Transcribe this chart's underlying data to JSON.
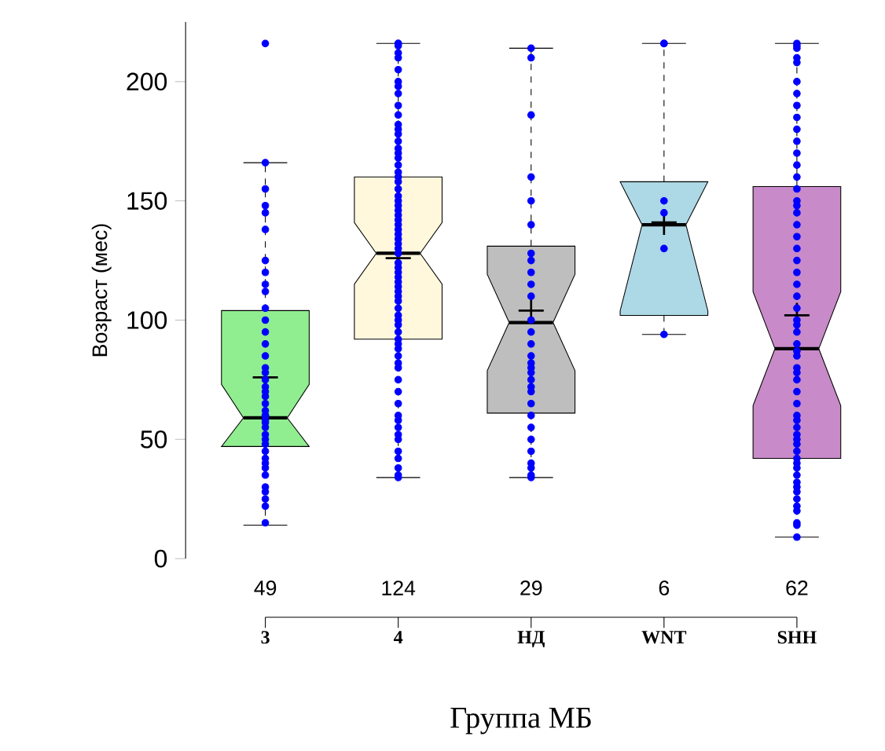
{
  "chart_data": {
    "type": "box",
    "xlabel": "Группа МБ",
    "ylabel": "Возраст (мес)",
    "categories": [
      "3",
      "4",
      "НД",
      "WNT",
      "SHH"
    ],
    "colors": [
      "#90ee90",
      "#fff8dc",
      "#bebebe",
      "#add8e6",
      "#c88ac8"
    ],
    "boxes": [
      {
        "low": 14,
        "q1": 47,
        "median": 59,
        "q3": 104,
        "high": 166,
        "mean": 76
      },
      {
        "low": 34,
        "q1": 92,
        "median": 128,
        "q3": 160,
        "high": 216,
        "mean": 126
      },
      {
        "low": 34,
        "q1": 61,
        "median": 99,
        "q3": 131,
        "high": 214,
        "mean": 104
      },
      {
        "low": 94,
        "q1": 102,
        "median": 140,
        "q3": 158,
        "high": 216,
        "mean": 141
      },
      {
        "low": 9,
        "q1": 42,
        "median": 88,
        "q3": 156,
        "high": 216,
        "mean": 102
      }
    ],
    "series": [
      {
        "type": "scatter",
        "color": "#0000ff",
        "marker": "circle",
        "x": [
          "3",
          "3",
          "3",
          "3",
          "3",
          "3",
          "3",
          "3",
          "3",
          "3",
          "3",
          "3",
          "3",
          "3",
          "3",
          "3",
          "3",
          "3",
          "3",
          "3",
          "3",
          "3",
          "3",
          "3",
          "3",
          "3",
          "3",
          "3",
          "3",
          "3",
          "3",
          "3",
          "3",
          "3",
          "3",
          "3",
          "3",
          "3",
          "3",
          "3",
          "3",
          "4",
          "4",
          "4",
          "4",
          "4",
          "4",
          "4",
          "4",
          "4",
          "4",
          "4",
          "4",
          "4",
          "4",
          "4",
          "4",
          "4",
          "4",
          "4",
          "4",
          "4",
          "4",
          "4",
          "4",
          "4",
          "4",
          "4",
          "4",
          "4",
          "4",
          "4",
          "4",
          "4",
          "4",
          "4",
          "4",
          "4",
          "4",
          "4",
          "4",
          "4",
          "4",
          "4",
          "4",
          "4",
          "4",
          "4",
          "4",
          "4",
          "4",
          "4",
          "4",
          "4",
          "4",
          "4",
          "4",
          "4",
          "4",
          "4",
          "4",
          "4",
          "4",
          "4",
          "4",
          "4",
          "4",
          "4",
          "4",
          "4",
          "НД",
          "НД",
          "НД",
          "НД",
          "НД",
          "НД",
          "НД",
          "НД",
          "НД",
          "НД",
          "НД",
          "НД",
          "НД",
          "НД",
          "НД",
          "НД",
          "НД",
          "НД",
          "НД",
          "НД",
          "НД",
          "НД",
          "НД",
          "НД",
          "НД",
          "НД",
          "НД",
          "НД",
          "НД",
          "НД",
          "WNT",
          "WNT",
          "WNT",
          "WNT",
          "WNT",
          "WNT",
          "SHH",
          "SHH",
          "SHH",
          "SHH",
          "SHH",
          "SHH",
          "SHH",
          "SHH",
          "SHH",
          "SHH",
          "SHH",
          "SHH",
          "SHH",
          "SHH",
          "SHH",
          "SHH",
          "SHH",
          "SHH",
          "SHH",
          "SHH",
          "SHH",
          "SHH",
          "SHH",
          "SHH",
          "SHH",
          "SHH",
          "SHH",
          "SHH",
          "SHH",
          "SHH",
          "SHH",
          "SHH",
          "SHH",
          "SHH",
          "SHH",
          "SHH",
          "SHH",
          "SHH",
          "SHH",
          "SHH",
          "SHH",
          "SHH",
          "SHH",
          "SHH",
          "SHH",
          "SHH",
          "SHH",
          "SHH",
          "SHH",
          "SHH",
          "SHH",
          "SHH",
          "SHH",
          "SHH",
          "SHH",
          "SHH",
          "SHH"
        ],
        "values": [
          216,
          166,
          155,
          148,
          145,
          138,
          125,
          120,
          115,
          112,
          105,
          100,
          95,
          90,
          85,
          80,
          78,
          75,
          72,
          70,
          68,
          65,
          62,
          60,
          60,
          58,
          57,
          55,
          52,
          50,
          48,
          45,
          42,
          40,
          38,
          35,
          30,
          28,
          25,
          22,
          15,
          216,
          216,
          215,
          212,
          210,
          205,
          200,
          198,
          195,
          190,
          186,
          182,
          180,
          178,
          175,
          172,
          170,
          168,
          165,
          162,
          160,
          158,
          155,
          152,
          150,
          148,
          146,
          144,
          142,
          140,
          138,
          136,
          134,
          132,
          130,
          128,
          124,
          122,
          120,
          118,
          116,
          114,
          112,
          110,
          108,
          105,
          102,
          100,
          98,
          95,
          92,
          90,
          88,
          85,
          82,
          80,
          75,
          70,
          65,
          60,
          55,
          50,
          42,
          38,
          35,
          34,
          45,
          52,
          58,
          214,
          210,
          186,
          160,
          150,
          140,
          128,
          125,
          120,
          115,
          110,
          100,
          95,
          90,
          85,
          82,
          80,
          78,
          75,
          72,
          70,
          65,
          60,
          55,
          50,
          45,
          40,
          35,
          34,
          38,
          216,
          216,
          150,
          145,
          130,
          94,
          216,
          215,
          214,
          210,
          208,
          200,
          195,
          190,
          185,
          180,
          175,
          170,
          165,
          160,
          155,
          150,
          148,
          145,
          140,
          135,
          130,
          125,
          120,
          115,
          110,
          105,
          100,
          98,
          95,
          90,
          87,
          85,
          80,
          78,
          75,
          70,
          65,
          60,
          58,
          55,
          52,
          50,
          48,
          45,
          42,
          40,
          38,
          35,
          32,
          30,
          28,
          25,
          22,
          20,
          15,
          14,
          9
        ]
      }
    ],
    "annotations": [
      "49",
      "124",
      "29",
      "6",
      "62"
    ],
    "ylim": [
      0,
      225
    ],
    "yticks": [
      0,
      50,
      100,
      150,
      200
    ]
  }
}
